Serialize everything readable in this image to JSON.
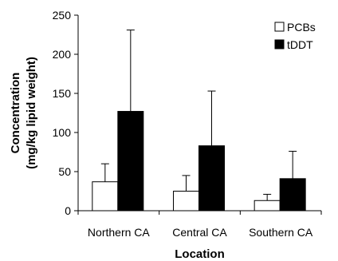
{
  "chart_data": {
    "type": "bar",
    "title": "",
    "xlabel": "Location",
    "ylabel_lines": [
      "Concentration",
      "(mg/kg lipid weight)"
    ],
    "categories": [
      "Northern CA",
      "Central CA",
      "Southern CA"
    ],
    "ylim": [
      0,
      250
    ],
    "yticks": [
      0,
      50,
      100,
      150,
      200,
      250
    ],
    "grid": false,
    "legend_position": "top-right",
    "series": [
      {
        "name": "PCBs",
        "color": "#ffffff",
        "values": [
          37,
          25,
          13
        ],
        "errors": [
          23,
          20,
          8
        ]
      },
      {
        "name": "tDDT",
        "color": "#000000",
        "values": [
          127,
          83,
          41
        ],
        "errors": [
          104,
          70,
          35
        ]
      }
    ]
  }
}
